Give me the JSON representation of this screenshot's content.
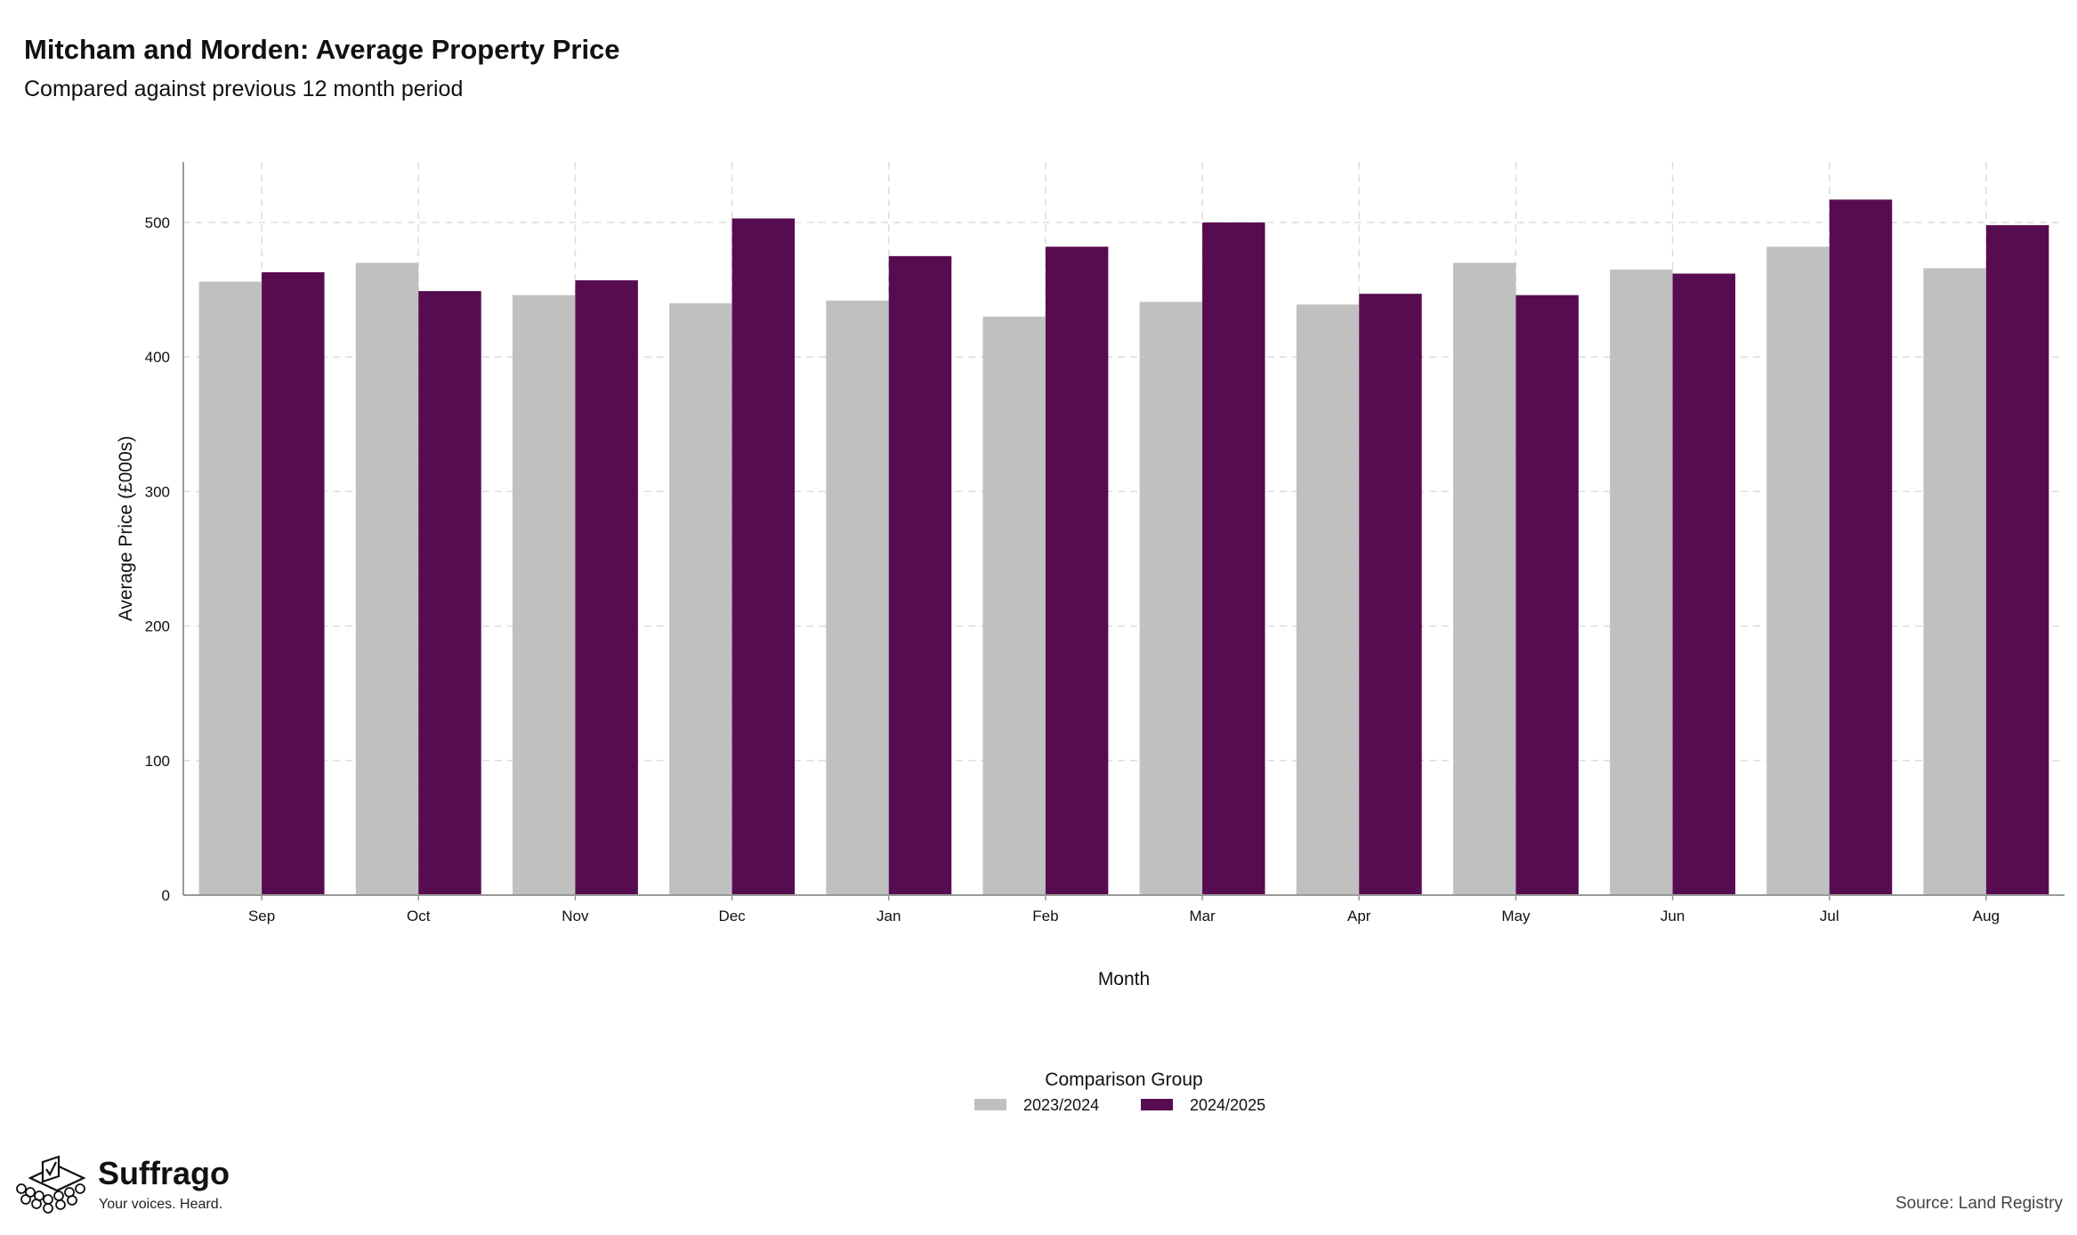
{
  "header": {
    "title": "Mitcham and Morden: Average Property Price",
    "subtitle": "Compared against previous 12 month period"
  },
  "footer": {
    "brand": "Suffrago",
    "tagline": "Your voices. Heard.",
    "source": "Source: Land Registry"
  },
  "chart_data": {
    "type": "bar",
    "title": "Mitcham and Morden: Average Property Price",
    "subtitle": "Compared against previous 12 month period",
    "xlabel": "Month",
    "ylabel": "Average Price (£000s)",
    "ylim": [
      0,
      545
    ],
    "yticks": [
      0,
      100,
      200,
      300,
      400,
      500
    ],
    "grid": true,
    "legend": {
      "title": "Comparison Group",
      "placement": "bottom"
    },
    "categories": [
      "Sep",
      "Oct",
      "Nov",
      "Dec",
      "Jan",
      "Feb",
      "Mar",
      "Apr",
      "May",
      "Jun",
      "Jul",
      "Aug"
    ],
    "series": [
      {
        "name": "2023/2024",
        "color": "#c0c0c0",
        "values": [
          456,
          470,
          446,
          440,
          442,
          430,
          441,
          439,
          470,
          465,
          482,
          466
        ]
      },
      {
        "name": "2024/2025",
        "color": "#570c51",
        "values": [
          463,
          449,
          457,
          503,
          475,
          482,
          500,
          447,
          446,
          462,
          517,
          498
        ]
      }
    ]
  }
}
